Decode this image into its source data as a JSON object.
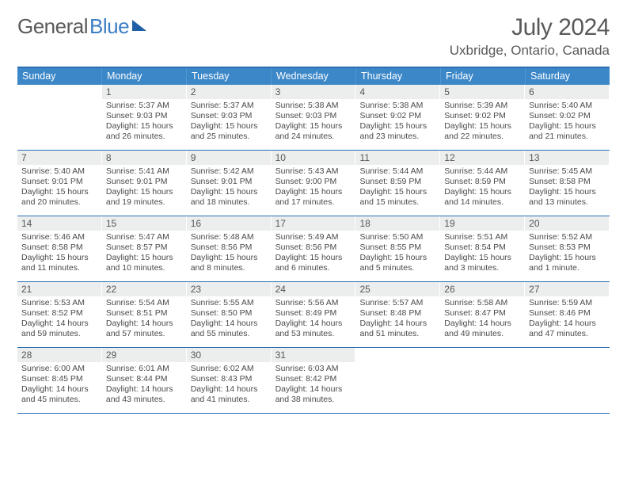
{
  "logo": {
    "part1": "General",
    "part2": "Blue"
  },
  "title": "July 2024",
  "location": "Uxbridge, Ontario, Canada",
  "dayHeaders": [
    "Sunday",
    "Monday",
    "Tuesday",
    "Wednesday",
    "Thursday",
    "Friday",
    "Saturday"
  ],
  "colors": {
    "header_bg": "#3b87c8",
    "header_border": "#2c6fb5",
    "daynum_bg": "#eceded",
    "text": "#5a5a5a"
  },
  "weeks": [
    [
      {
        "n": "",
        "r": "",
        "s": "",
        "d1": "",
        "d2": ""
      },
      {
        "n": "1",
        "r": "Sunrise: 5:37 AM",
        "s": "Sunset: 9:03 PM",
        "d1": "Daylight: 15 hours",
        "d2": "and 26 minutes."
      },
      {
        "n": "2",
        "r": "Sunrise: 5:37 AM",
        "s": "Sunset: 9:03 PM",
        "d1": "Daylight: 15 hours",
        "d2": "and 25 minutes."
      },
      {
        "n": "3",
        "r": "Sunrise: 5:38 AM",
        "s": "Sunset: 9:03 PM",
        "d1": "Daylight: 15 hours",
        "d2": "and 24 minutes."
      },
      {
        "n": "4",
        "r": "Sunrise: 5:38 AM",
        "s": "Sunset: 9:02 PM",
        "d1": "Daylight: 15 hours",
        "d2": "and 23 minutes."
      },
      {
        "n": "5",
        "r": "Sunrise: 5:39 AM",
        "s": "Sunset: 9:02 PM",
        "d1": "Daylight: 15 hours",
        "d2": "and 22 minutes."
      },
      {
        "n": "6",
        "r": "Sunrise: 5:40 AM",
        "s": "Sunset: 9:02 PM",
        "d1": "Daylight: 15 hours",
        "d2": "and 21 minutes."
      }
    ],
    [
      {
        "n": "7",
        "r": "Sunrise: 5:40 AM",
        "s": "Sunset: 9:01 PM",
        "d1": "Daylight: 15 hours",
        "d2": "and 20 minutes."
      },
      {
        "n": "8",
        "r": "Sunrise: 5:41 AM",
        "s": "Sunset: 9:01 PM",
        "d1": "Daylight: 15 hours",
        "d2": "and 19 minutes."
      },
      {
        "n": "9",
        "r": "Sunrise: 5:42 AM",
        "s": "Sunset: 9:01 PM",
        "d1": "Daylight: 15 hours",
        "d2": "and 18 minutes."
      },
      {
        "n": "10",
        "r": "Sunrise: 5:43 AM",
        "s": "Sunset: 9:00 PM",
        "d1": "Daylight: 15 hours",
        "d2": "and 17 minutes."
      },
      {
        "n": "11",
        "r": "Sunrise: 5:44 AM",
        "s": "Sunset: 8:59 PM",
        "d1": "Daylight: 15 hours",
        "d2": "and 15 minutes."
      },
      {
        "n": "12",
        "r": "Sunrise: 5:44 AM",
        "s": "Sunset: 8:59 PM",
        "d1": "Daylight: 15 hours",
        "d2": "and 14 minutes."
      },
      {
        "n": "13",
        "r": "Sunrise: 5:45 AM",
        "s": "Sunset: 8:58 PM",
        "d1": "Daylight: 15 hours",
        "d2": "and 13 minutes."
      }
    ],
    [
      {
        "n": "14",
        "r": "Sunrise: 5:46 AM",
        "s": "Sunset: 8:58 PM",
        "d1": "Daylight: 15 hours",
        "d2": "and 11 minutes."
      },
      {
        "n": "15",
        "r": "Sunrise: 5:47 AM",
        "s": "Sunset: 8:57 PM",
        "d1": "Daylight: 15 hours",
        "d2": "and 10 minutes."
      },
      {
        "n": "16",
        "r": "Sunrise: 5:48 AM",
        "s": "Sunset: 8:56 PM",
        "d1": "Daylight: 15 hours",
        "d2": "and 8 minutes."
      },
      {
        "n": "17",
        "r": "Sunrise: 5:49 AM",
        "s": "Sunset: 8:56 PM",
        "d1": "Daylight: 15 hours",
        "d2": "and 6 minutes."
      },
      {
        "n": "18",
        "r": "Sunrise: 5:50 AM",
        "s": "Sunset: 8:55 PM",
        "d1": "Daylight: 15 hours",
        "d2": "and 5 minutes."
      },
      {
        "n": "19",
        "r": "Sunrise: 5:51 AM",
        "s": "Sunset: 8:54 PM",
        "d1": "Daylight: 15 hours",
        "d2": "and 3 minutes."
      },
      {
        "n": "20",
        "r": "Sunrise: 5:52 AM",
        "s": "Sunset: 8:53 PM",
        "d1": "Daylight: 15 hours",
        "d2": "and 1 minute."
      }
    ],
    [
      {
        "n": "21",
        "r": "Sunrise: 5:53 AM",
        "s": "Sunset: 8:52 PM",
        "d1": "Daylight: 14 hours",
        "d2": "and 59 minutes."
      },
      {
        "n": "22",
        "r": "Sunrise: 5:54 AM",
        "s": "Sunset: 8:51 PM",
        "d1": "Daylight: 14 hours",
        "d2": "and 57 minutes."
      },
      {
        "n": "23",
        "r": "Sunrise: 5:55 AM",
        "s": "Sunset: 8:50 PM",
        "d1": "Daylight: 14 hours",
        "d2": "and 55 minutes."
      },
      {
        "n": "24",
        "r": "Sunrise: 5:56 AM",
        "s": "Sunset: 8:49 PM",
        "d1": "Daylight: 14 hours",
        "d2": "and 53 minutes."
      },
      {
        "n": "25",
        "r": "Sunrise: 5:57 AM",
        "s": "Sunset: 8:48 PM",
        "d1": "Daylight: 14 hours",
        "d2": "and 51 minutes."
      },
      {
        "n": "26",
        "r": "Sunrise: 5:58 AM",
        "s": "Sunset: 8:47 PM",
        "d1": "Daylight: 14 hours",
        "d2": "and 49 minutes."
      },
      {
        "n": "27",
        "r": "Sunrise: 5:59 AM",
        "s": "Sunset: 8:46 PM",
        "d1": "Daylight: 14 hours",
        "d2": "and 47 minutes."
      }
    ],
    [
      {
        "n": "28",
        "r": "Sunrise: 6:00 AM",
        "s": "Sunset: 8:45 PM",
        "d1": "Daylight: 14 hours",
        "d2": "and 45 minutes."
      },
      {
        "n": "29",
        "r": "Sunrise: 6:01 AM",
        "s": "Sunset: 8:44 PM",
        "d1": "Daylight: 14 hours",
        "d2": "and 43 minutes."
      },
      {
        "n": "30",
        "r": "Sunrise: 6:02 AM",
        "s": "Sunset: 8:43 PM",
        "d1": "Daylight: 14 hours",
        "d2": "and 41 minutes."
      },
      {
        "n": "31",
        "r": "Sunrise: 6:03 AM",
        "s": "Sunset: 8:42 PM",
        "d1": "Daylight: 14 hours",
        "d2": "and 38 minutes."
      },
      {
        "n": "",
        "r": "",
        "s": "",
        "d1": "",
        "d2": ""
      },
      {
        "n": "",
        "r": "",
        "s": "",
        "d1": "",
        "d2": ""
      },
      {
        "n": "",
        "r": "",
        "s": "",
        "d1": "",
        "d2": ""
      }
    ]
  ]
}
